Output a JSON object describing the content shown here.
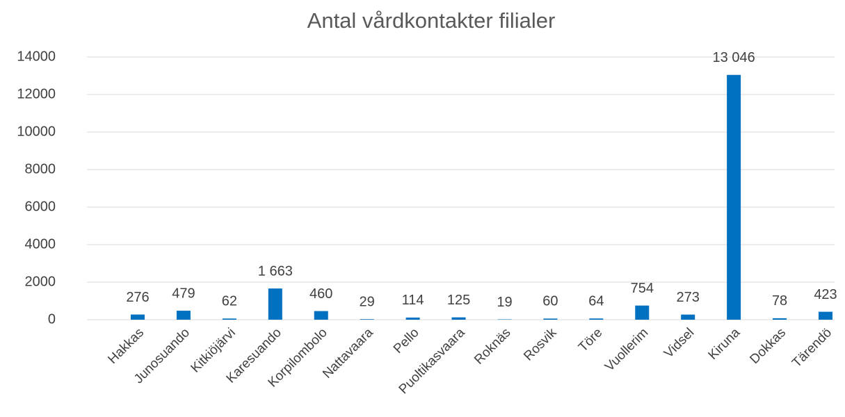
{
  "chart_data": {
    "type": "bar",
    "title": "Antal vårdkontakter filialer",
    "categories": [
      "Hakkas",
      "Junosuando",
      "Kitkiöjärvi",
      "Karesuando",
      "Korpilombolo",
      "Nattavaara",
      "Pello",
      "Puoltikasvaara",
      "Roknäs",
      "Rosvik",
      "Töre",
      "Vuollerim",
      "Vidsel",
      "Kiruna",
      "Dokkas",
      "Tärendö"
    ],
    "values": [
      276,
      479,
      62,
      1663,
      460,
      29,
      114,
      125,
      19,
      60,
      64,
      754,
      273,
      13046,
      78,
      423
    ],
    "value_labels": [
      "276",
      "479",
      "62",
      "1 663",
      "460",
      "29",
      "114",
      "125",
      "19",
      "60",
      "64",
      "754",
      "273",
      "13 046",
      "78",
      "423"
    ],
    "color": "#0070c0",
    "ylim": [
      0,
      14000
    ],
    "yticks": [
      0,
      2000,
      4000,
      6000,
      8000,
      10000,
      12000,
      14000
    ],
    "grid": true
  }
}
